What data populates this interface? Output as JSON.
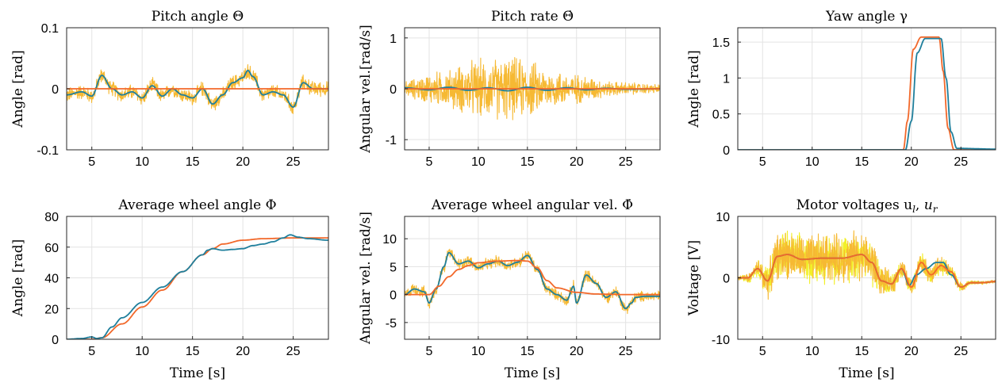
{
  "colors": {
    "blue": "#0072BD",
    "teal": "#1f7f9c",
    "orange": "#F2682A",
    "gold": "#F6B933",
    "yellow": "#F2F028"
  },
  "chart_data": [
    {
      "type": "line",
      "title": "Pitch angle Θ",
      "xlabel": "",
      "ylabel": "Angle [rad]",
      "xlim": [
        2.5,
        28.5
      ],
      "ylim": [
        -0.1,
        0.1
      ],
      "xticks": [
        5,
        10,
        15,
        20,
        25
      ],
      "xtick_labels": [
        "5",
        "10",
        "15",
        "20",
        "25"
      ],
      "yticks": [
        -0.1,
        0,
        0.1
      ],
      "ytick_labels": [
        "-0.1",
        "0",
        "0.1"
      ],
      "grid": true,
      "series": [
        {
          "color": "#F6B933",
          "noisy": 0.011,
          "x": [
            2.5,
            4,
            5,
            6,
            7,
            8,
            9,
            10,
            11,
            12,
            13,
            14,
            15,
            16,
            17,
            18,
            19,
            20,
            20.5,
            21,
            22,
            23,
            24,
            25,
            26,
            27,
            28.5
          ],
          "y": [
            -0.01,
            -0.005,
            -0.012,
            0.022,
            0.0,
            -0.01,
            -0.005,
            -0.015,
            0.005,
            -0.012,
            0.0,
            -0.01,
            -0.015,
            0.0,
            -0.025,
            -0.01,
            0.01,
            0.018,
            0.03,
            0.02,
            -0.01,
            -0.005,
            -0.01,
            -0.03,
            0.01,
            0.0,
            0.0
          ]
        },
        {
          "color": "#1f7f9c",
          "x": [
            2.5,
            4,
            5,
            6,
            7,
            8,
            9,
            10,
            11,
            12,
            13,
            14,
            15,
            16,
            17,
            18,
            19,
            20,
            20.5,
            21,
            22,
            23,
            24,
            25,
            26,
            27,
            28.5
          ],
          "y": [
            -0.01,
            -0.005,
            -0.012,
            0.022,
            0.0,
            -0.01,
            -0.005,
            -0.015,
            0.005,
            -0.012,
            0.0,
            -0.01,
            -0.015,
            0.0,
            -0.025,
            -0.01,
            0.01,
            0.018,
            0.03,
            0.02,
            -0.01,
            -0.005,
            -0.01,
            -0.03,
            0.01,
            0.0,
            0.0
          ]
        },
        {
          "color": "#F2682A",
          "x": [
            2.5,
            28.5
          ],
          "y": [
            0,
            0
          ]
        }
      ]
    },
    {
      "type": "line",
      "title": "Pitch rate Θ̇",
      "xlabel": "",
      "ylabel": "Angular vel.[rad/s]",
      "xlim": [
        2.5,
        28.5
      ],
      "ylim": [
        -1.2,
        1.2
      ],
      "xticks": [
        5,
        10,
        15,
        20,
        25
      ],
      "xtick_labels": [
        "5",
        "10",
        "15",
        "20",
        "25"
      ],
      "yticks": [
        -1,
        0,
        1
      ],
      "ytick_labels": [
        "-1",
        "0",
        "1"
      ],
      "grid": true,
      "series": [
        {
          "color": "#F6B933",
          "noisy": 0.25,
          "envelope": [
            [
              2.5,
              0.15
            ],
            [
              6,
              0.3
            ],
            [
              10,
              0.5
            ],
            [
              13,
              0.55
            ],
            [
              15,
              0.5
            ],
            [
              17,
              0.35
            ],
            [
              20,
              0.25
            ],
            [
              24,
              0.12
            ],
            [
              28.5,
              0.08
            ]
          ],
          "x": [
            2.5,
            28.5
          ],
          "y": [
            0,
            0
          ]
        },
        {
          "color": "#1f7f9c",
          "x": [
            2.5,
            5,
            7,
            9,
            11,
            13,
            15,
            17,
            19,
            21,
            23,
            25,
            28.5
          ],
          "y": [
            0.02,
            -0.02,
            0.03,
            -0.03,
            0.02,
            -0.04,
            0.03,
            -0.03,
            0.02,
            -0.02,
            0.01,
            -0.01,
            0.0
          ]
        },
        {
          "color": "#F2682A",
          "x": [
            2.5,
            28.5
          ],
          "y": [
            0,
            0
          ]
        }
      ]
    },
    {
      "type": "line",
      "title": "Yaw angle γ",
      "xlabel": "",
      "ylabel": "Angle [rad]",
      "xlim": [
        2.5,
        28.5
      ],
      "ylim": [
        0,
        1.7
      ],
      "xticks": [
        5,
        10,
        15,
        20,
        25
      ],
      "xtick_labels": [
        "5",
        "10",
        "15",
        "20",
        "25"
      ],
      "yticks": [
        0,
        0.5,
        1,
        1.5
      ],
      "ytick_labels": [
        "0",
        "0.5",
        "1",
        "1.5"
      ],
      "grid": true,
      "series": [
        {
          "color": "#F2682A",
          "x": [
            2.5,
            19.2,
            19.6,
            20.2,
            21,
            22.8,
            23.2,
            23.7,
            24.3,
            28.5
          ],
          "y": [
            0,
            0,
            0.4,
            1.4,
            1.57,
            1.57,
            1.1,
            0.3,
            0,
            0
          ]
        },
        {
          "color": "#1f7f9c",
          "x": [
            2.5,
            19.4,
            20.0,
            20.6,
            21.4,
            23.0,
            23.5,
            24.0,
            24.6,
            28.5
          ],
          "y": [
            0,
            0,
            0.4,
            1.35,
            1.55,
            1.55,
            1.0,
            0.25,
            0.02,
            0.01
          ]
        }
      ]
    },
    {
      "type": "line",
      "title": "Average wheel angle Φ",
      "xlabel": "Time [s]",
      "ylabel": "Angle [rad]",
      "xlim": [
        2.5,
        28.5
      ],
      "ylim": [
        0,
        80
      ],
      "xticks": [
        5,
        10,
        15,
        20,
        25
      ],
      "xtick_labels": [
        "5",
        "10",
        "15",
        "20",
        "25"
      ],
      "yticks": [
        0,
        20,
        40,
        60,
        80
      ],
      "ytick_labels": [
        "0",
        "20",
        "40",
        "60",
        "80"
      ],
      "grid": true,
      "series": [
        {
          "color": "#F2682A",
          "x": [
            2.5,
            5,
            6,
            8,
            10,
            12,
            14,
            16,
            17,
            18,
            20,
            22,
            25,
            28.5
          ],
          "y": [
            0,
            0,
            1,
            10,
            21,
            32,
            44,
            55,
            59,
            62,
            64.5,
            65.5,
            66,
            66
          ]
        },
        {
          "color": "#1f7f9c",
          "x": [
            2.5,
            4,
            5,
            5.5,
            6,
            7,
            8,
            10,
            12,
            14,
            16,
            16.5,
            17,
            18,
            19,
            20,
            21,
            22,
            23,
            24,
            24.7,
            25.5,
            26.5,
            28.5
          ],
          "y": [
            0,
            0.5,
            1.5,
            0.5,
            1,
            8,
            14,
            24,
            34,
            44,
            55,
            58,
            59,
            58,
            58.5,
            59,
            61,
            62,
            63.5,
            66,
            68,
            66.5,
            65.5,
            64.5
          ]
        }
      ]
    },
    {
      "type": "line",
      "title": "Average wheel angular vel. Φ̇",
      "xlabel": "Time [s]",
      "ylabel": "Angular vel. [rad/s]",
      "xlim": [
        2.5,
        28.5
      ],
      "ylim": [
        -8,
        14
      ],
      "xticks": [
        5,
        10,
        15,
        20,
        25
      ],
      "xtick_labels": [
        "5",
        "10",
        "15",
        "20",
        "25"
      ],
      "yticks": [
        -5,
        0,
        5,
        10
      ],
      "ytick_labels": [
        "-5",
        "0",
        "5",
        "10"
      ],
      "grid": true,
      "series": [
        {
          "color": "#F6B933",
          "noisy": 0.9,
          "x": [
            2.5,
            3.5,
            4.5,
            5,
            5.7,
            6.5,
            7,
            8,
            9,
            10,
            11,
            12,
            13,
            14,
            15,
            16,
            17,
            18,
            19,
            19.7,
            20,
            21,
            22,
            23,
            24,
            25,
            25.6,
            26,
            27,
            28.5
          ],
          "y": [
            0,
            1,
            0.5,
            -1.5,
            1,
            5,
            7.5,
            5.5,
            6,
            4.8,
            5.5,
            6,
            5.2,
            5.8,
            7,
            4.5,
            1,
            0,
            -1,
            1.5,
            -1.5,
            3.5,
            2,
            -0.5,
            0.5,
            -2.5,
            -1.5,
            -0.5,
            -0.3,
            -0.3
          ]
        },
        {
          "color": "#1f7f9c",
          "x": [
            2.5,
            3.5,
            4.5,
            5,
            5.7,
            6.5,
            7,
            8,
            9,
            10,
            11,
            12,
            13,
            14,
            15,
            16,
            17,
            18,
            19,
            19.7,
            20,
            21,
            22,
            23,
            24,
            25,
            25.6,
            26,
            27,
            28.5
          ],
          "y": [
            0,
            1,
            0.5,
            -1.5,
            1,
            5,
            7.5,
            5.5,
            6,
            4.8,
            5.5,
            6,
            5.2,
            5.8,
            7,
            4.5,
            1,
            0,
            -1,
            1.5,
            -1.5,
            3.5,
            2,
            -0.5,
            0.5,
            -2.5,
            -1.5,
            -0.5,
            -0.3,
            -0.3
          ]
        },
        {
          "color": "#F2682A",
          "x": [
            2.5,
            5,
            6,
            7,
            8,
            9,
            10,
            12,
            14,
            15,
            16,
            17,
            18,
            20,
            22,
            25,
            28.5
          ],
          "y": [
            0,
            0,
            1.5,
            3.2,
            4.5,
            5.2,
            5.7,
            6.0,
            6.1,
            6.0,
            4.8,
            2.5,
            1.2,
            0.4,
            0.1,
            0,
            0
          ]
        }
      ]
    },
    {
      "type": "line",
      "title": "Motor voltages u",
      "title_parts": {
        "u": "u",
        "l": "l",
        "sep": ", ",
        "r": "r"
      },
      "xlabel": "Time [s]",
      "ylabel": "Voltage [V]",
      "xlim": [
        2.5,
        28.5
      ],
      "ylim": [
        -10,
        10
      ],
      "xticks": [
        5,
        10,
        15,
        20,
        25
      ],
      "xtick_labels": [
        "5",
        "10",
        "15",
        "20",
        "25"
      ],
      "yticks": [
        -10,
        0,
        10
      ],
      "ytick_labels": [
        "-10",
        "0",
        "10"
      ],
      "grid": true,
      "series": [
        {
          "color": "#F2F028",
          "noisy": 1.2,
          "envelope": [
            [
              2.5,
              0.3
            ],
            [
              4,
              0.8
            ],
            [
              5.5,
              2.5
            ],
            [
              7,
              3.5
            ],
            [
              10,
              3.5
            ],
            [
              13,
              3.5
            ],
            [
              16,
              3.5
            ],
            [
              17,
              2.0
            ],
            [
              18.5,
              1.5
            ],
            [
              20,
              1.2
            ],
            [
              23,
              1.5
            ],
            [
              24,
              1.0
            ],
            [
              26,
              0.3
            ],
            [
              28.5,
              0.2
            ]
          ],
          "x": [
            2.5,
            3.5,
            4.5,
            5.5,
            6.5,
            7.5,
            9,
            11,
            13,
            15,
            16,
            17,
            18,
            19,
            20,
            21,
            22,
            23,
            24,
            25,
            26,
            27,
            28.5
          ],
          "y": [
            0,
            0,
            1.5,
            -0.5,
            3.5,
            3.8,
            3,
            3.2,
            3.2,
            3.8,
            2.5,
            -0.5,
            -1,
            1.5,
            -1.5,
            2.5,
            0.5,
            2,
            1,
            -1.5,
            -0.8,
            -0.8,
            -0.6
          ]
        },
        {
          "color": "#F6B933",
          "noisy": 1.2,
          "envelope": [
            [
              2.5,
              0.3
            ],
            [
              4,
              0.8
            ],
            [
              5.5,
              2.5
            ],
            [
              7,
              3.5
            ],
            [
              10,
              3.5
            ],
            [
              13,
              3.5
            ],
            [
              16,
              3.5
            ],
            [
              17,
              2.0
            ],
            [
              18.5,
              1.5
            ],
            [
              20,
              1.2
            ],
            [
              23,
              1.5
            ],
            [
              24,
              1.0
            ],
            [
              26,
              0.3
            ],
            [
              28.5,
              0.2
            ]
          ],
          "x": [
            2.5,
            3.5,
            4.5,
            5.5,
            6.5,
            7.5,
            9,
            11,
            13,
            15,
            16,
            17,
            18,
            19,
            20,
            21,
            22,
            23,
            24,
            25,
            26,
            27,
            28.5
          ],
          "y": [
            0,
            0,
            1.5,
            -0.5,
            3.5,
            3.8,
            3,
            3.2,
            3.2,
            3.8,
            2.5,
            -0.5,
            -1,
            1.5,
            -1.5,
            2.5,
            0.5,
            2,
            1,
            -1.5,
            -0.8,
            -0.8,
            -0.6
          ]
        },
        {
          "color": "#1f7f9c",
          "x": [
            2.5,
            3.5,
            4.5,
            5.5,
            6.5,
            7.5,
            9,
            11,
            13,
            15,
            16,
            17,
            18,
            19,
            19.8,
            20.5,
            21.5,
            22.5,
            23.2,
            24,
            25,
            26,
            27,
            28.5
          ],
          "y": [
            0,
            0,
            1.5,
            -0.5,
            3.5,
            3.8,
            3,
            3.2,
            3.2,
            3.8,
            2.5,
            -0.5,
            -1,
            1.5,
            -1.2,
            0.5,
            1.5,
            2.5,
            2.5,
            0.5,
            -1.5,
            -0.8,
            -0.8,
            -0.6
          ]
        },
        {
          "color": "#F2682A",
          "x": [
            2.5,
            3.5,
            4.5,
            5.5,
            6.5,
            7.5,
            9,
            11,
            13,
            15,
            16,
            17,
            18,
            19,
            20,
            21,
            22,
            23,
            24,
            25,
            26,
            27,
            28.5
          ],
          "y": [
            0,
            0,
            1.5,
            -0.5,
            3.5,
            3.8,
            3,
            3.2,
            3.2,
            3.8,
            2.5,
            -0.5,
            -1,
            1.5,
            -1.5,
            2.5,
            0.5,
            2,
            1,
            -1.5,
            -0.8,
            -0.8,
            -0.6
          ]
        }
      ]
    }
  ]
}
